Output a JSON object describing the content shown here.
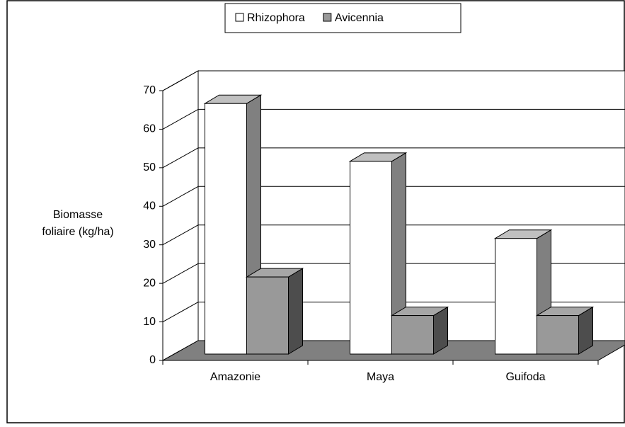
{
  "chart_data": {
    "type": "bar3d",
    "ylabel_lines": [
      "Biomasse",
      "foliaire (kg/ha)"
    ],
    "categories": [
      "Amazonie",
      "Maya",
      "Guifoda"
    ],
    "series": [
      {
        "name": "Rhizophora",
        "color": "#ffffff",
        "top_color": "#c0c0c0",
        "side_color": "#808080",
        "values": [
          65,
          50,
          30
        ]
      },
      {
        "name": "Avicennia",
        "color": "#999999",
        "top_color": "#a6a6a6",
        "side_color": "#4d4d4d",
        "values": [
          20,
          10,
          10
        ]
      }
    ],
    "ylim": [
      0,
      70
    ],
    "yticks": [
      0,
      10,
      20,
      30,
      40,
      50,
      60,
      70
    ],
    "grid": true,
    "legend": "top"
  }
}
